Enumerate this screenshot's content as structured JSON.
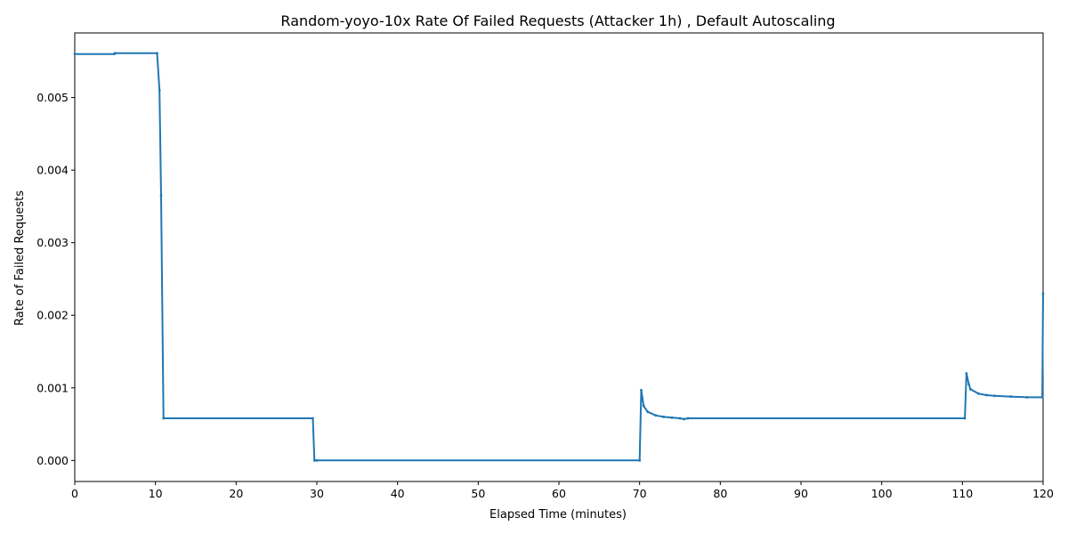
{
  "chart_data": {
    "type": "line",
    "title": "Random-yoyo-10x Rate Of Failed Requests (Attacker 1h) , Default Autoscaling",
    "xlabel": "Elapsed Time (minutes)",
    "ylabel": "Rate of Failed Requests",
    "xlim": [
      0,
      120
    ],
    "ylim": [
      -0.00029,
      0.00589
    ],
    "x_ticks": [
      0,
      10,
      20,
      30,
      40,
      50,
      60,
      70,
      80,
      90,
      100,
      110,
      120
    ],
    "x_tick_labels": [
      "0",
      "10",
      "20",
      "30",
      "40",
      "50",
      "60",
      "70",
      "80",
      "90",
      "100",
      "110",
      "120"
    ],
    "y_ticks": [
      0,
      0.001,
      0.002,
      0.003,
      0.004,
      0.005
    ],
    "y_tick_labels": [
      "0.000",
      "0.001",
      "0.002",
      "0.003",
      "0.004",
      "0.005"
    ],
    "grid": false,
    "legend": "none",
    "line_color": "#1f77b4",
    "series": [
      {
        "x": [
          0,
          4.9,
          5.0,
          10.2,
          10.5,
          10.7,
          11.0,
          29.5,
          29.7,
          30,
          70.0,
          70.2,
          70.5,
          71,
          72,
          73,
          74,
          75,
          75.5,
          76,
          110.3,
          110.5,
          110.8,
          111,
          112,
          113,
          114,
          116,
          118,
          119.9,
          120
        ],
        "y": [
          0.0056,
          0.0056,
          0.00561,
          0.00561,
          0.0051,
          0.00365,
          0.00058,
          0.00058,
          0.0,
          0.0,
          0.0,
          0.00097,
          0.00075,
          0.00067,
          0.00062,
          0.0006,
          0.00059,
          0.00058,
          0.00057,
          0.00058,
          0.00058,
          0.0012,
          0.00105,
          0.00098,
          0.00092,
          0.0009,
          0.00089,
          0.00088,
          0.00087,
          0.00087,
          0.0023
        ]
      }
    ]
  }
}
